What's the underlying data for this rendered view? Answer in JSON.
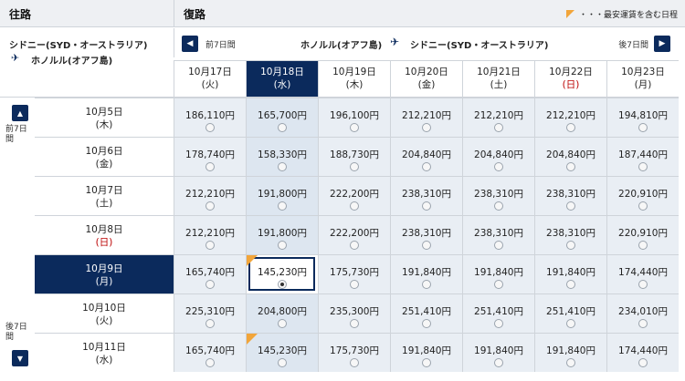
{
  "header": {
    "outbound_title": "往路",
    "return_title": "復路",
    "legend": "・・・最安運賃を含む日程"
  },
  "outbound_route": {
    "from": "シドニー(SYD・オーストラリア)",
    "to": "ホノルル(オアフ島)"
  },
  "return_route": {
    "from": "ホノルル(オアフ島)",
    "to": "シドニー(SYD・オーストラリア)",
    "prev_label": "前7日間",
    "next_label": "後7日間"
  },
  "side": {
    "prev_label": "前7日間",
    "next_label": "後7日間"
  },
  "return_dates": [
    {
      "date": "10月17日",
      "day": "(火)",
      "sun": false,
      "selected": false
    },
    {
      "date": "10月18日",
      "day": "(水)",
      "sun": false,
      "selected": true
    },
    {
      "date": "10月19日",
      "day": "(木)",
      "sun": false,
      "selected": false
    },
    {
      "date": "10月20日",
      "day": "(金)",
      "sun": false,
      "selected": false
    },
    {
      "date": "10月21日",
      "day": "(土)",
      "sun": false,
      "selected": false
    },
    {
      "date": "10月22日",
      "day": "(日)",
      "sun": true,
      "selected": false
    },
    {
      "date": "10月23日",
      "day": "(月)",
      "sun": false,
      "selected": false
    }
  ],
  "rows": [
    {
      "date": "10月5日",
      "day": "(木)",
      "sun": false,
      "selected": false,
      "prices": [
        "186,110円",
        "165,700円",
        "196,100円",
        "212,210円",
        "212,210円",
        "212,210円",
        "194,810円"
      ]
    },
    {
      "date": "10月6日",
      "day": "(金)",
      "sun": false,
      "selected": false,
      "prices": [
        "178,740円",
        "158,330円",
        "188,730円",
        "204,840円",
        "204,840円",
        "204,840円",
        "187,440円"
      ]
    },
    {
      "date": "10月7日",
      "day": "(土)",
      "sun": false,
      "selected": false,
      "prices": [
        "212,210円",
        "191,800円",
        "222,200円",
        "238,310円",
        "238,310円",
        "238,310円",
        "220,910円"
      ]
    },
    {
      "date": "10月8日",
      "day": "(日)",
      "sun": true,
      "selected": false,
      "prices": [
        "212,210円",
        "191,800円",
        "222,200円",
        "238,310円",
        "238,310円",
        "238,310円",
        "220,910円"
      ]
    },
    {
      "date": "10月9日",
      "day": "(月)",
      "sun": false,
      "selected": true,
      "prices": [
        "165,740円",
        "145,230円",
        "175,730円",
        "191,840円",
        "191,840円",
        "191,840円",
        "174,440円"
      ]
    },
    {
      "date": "10月10日",
      "day": "(火)",
      "sun": false,
      "selected": false,
      "prices": [
        "225,310円",
        "204,800円",
        "235,300円",
        "251,410円",
        "251,410円",
        "251,410円",
        "234,010円"
      ]
    },
    {
      "date": "10月11日",
      "day": "(水)",
      "sun": false,
      "selected": false,
      "prices": [
        "165,740円",
        "145,230円",
        "175,730円",
        "191,840円",
        "191,840円",
        "191,840円",
        "174,440円"
      ]
    }
  ],
  "cheapest_cells": [
    [
      4,
      1
    ],
    [
      6,
      1
    ]
  ],
  "chosen_cell": [
    4,
    1
  ],
  "colors": {
    "navy": "#0b2a5c",
    "cheapest_marker": "#f2a53a",
    "sunday": "#bb0000"
  },
  "icons": {
    "plane": "airplane-icon",
    "prev": "chevron-left-icon",
    "next": "chevron-right-icon",
    "up": "chevron-up-icon",
    "down": "chevron-down-icon"
  }
}
